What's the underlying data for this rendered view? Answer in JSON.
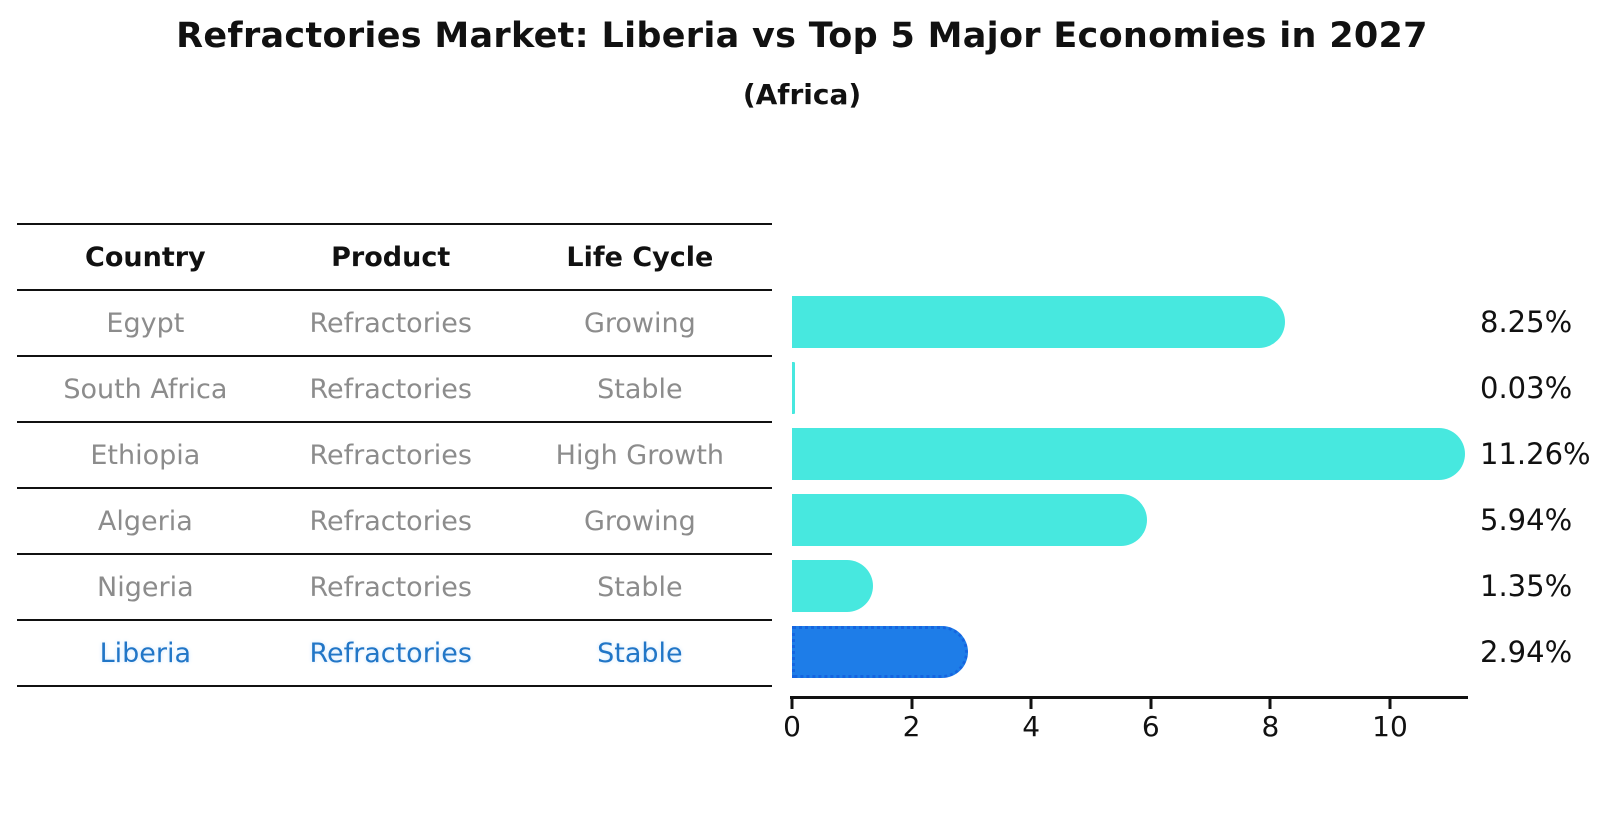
{
  "title": "Refractories Market: Liberia vs Top 5 Major Economies in 2027",
  "subtitle": "(Africa)",
  "table": {
    "headers": [
      "Country",
      "Product",
      "Life Cycle"
    ],
    "rows": [
      {
        "country": "Egypt",
        "product": "Refractories",
        "life_cycle": "Growing",
        "display_value": "8.25%",
        "highlight": false
      },
      {
        "country": "South Africa",
        "product": "Refractories",
        "life_cycle": "Stable",
        "display_value": "0.03%",
        "highlight": false
      },
      {
        "country": "Ethiopia",
        "product": "Refractories",
        "life_cycle": "High Growth",
        "display_value": "11.26%",
        "highlight": false
      },
      {
        "country": "Algeria",
        "product": "Refractories",
        "life_cycle": "Growing",
        "display_value": "5.94%",
        "highlight": false
      },
      {
        "country": "Nigeria",
        "product": "Refractories",
        "life_cycle": "Stable",
        "display_value": "1.35%",
        "highlight": false
      },
      {
        "country": "Liberia",
        "product": "Refractories",
        "life_cycle": "Stable",
        "display_value": "2.94%",
        "highlight": true
      }
    ]
  },
  "chart_data": {
    "type": "bar",
    "orientation": "horizontal",
    "title": "Refractories Market: Liberia vs Top 5 Major Economies in 2027",
    "subtitle": "(Africa)",
    "categories": [
      "Egypt",
      "South Africa",
      "Ethiopia",
      "Algeria",
      "Nigeria",
      "Liberia"
    ],
    "values": [
      8.25,
      0.03,
      11.26,
      5.94,
      1.35,
      2.94
    ],
    "value_labels": [
      "8.25%",
      "0.03%",
      "11.26%",
      "5.94%",
      "1.35%",
      "2.94%"
    ],
    "xlabel": "",
    "ylabel": "",
    "xticks": [
      0,
      2,
      4,
      6,
      8,
      10
    ],
    "xlim": [
      0,
      11.26
    ],
    "grid": false,
    "legend": "none",
    "highlight_category": "Liberia",
    "highlight_index": 5
  },
  "colors": {
    "bar": "#47e8df",
    "highlight_bar": "#1e7de8",
    "highlight_bar_border": "#1565e0",
    "highlight_text": "#2176c7",
    "row_text": "#8c8c8c",
    "header_text": "#111111",
    "line": "#111111",
    "background": "#ffffff"
  }
}
